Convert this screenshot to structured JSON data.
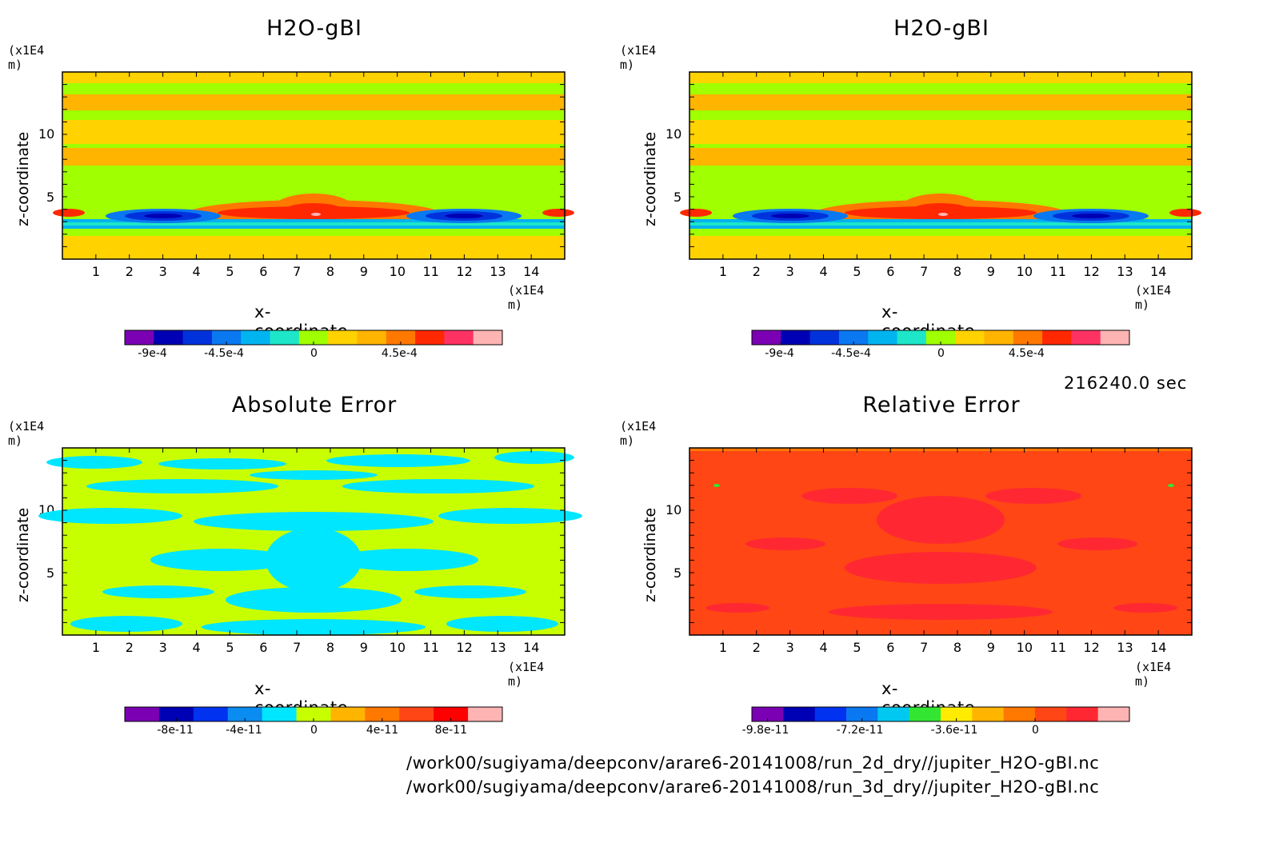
{
  "panels": [
    {
      "title": "H2O-gBI",
      "unit_y": "(x1E4 m)",
      "unit_x": "(x1E4 m)",
      "xlabel": "x-coordinate",
      "ylabel": "z-coordinate",
      "xticks": [
        "1",
        "2",
        "3",
        "4",
        "5",
        "6",
        "7",
        "8",
        "9",
        "10",
        "11",
        "12",
        "13",
        "14"
      ],
      "yticks": [
        "10",
        "5"
      ],
      "colorbar": {
        "colors": [
          "#7b00b4",
          "#0000b4",
          "#0032dc",
          "#0a78f0",
          "#00b4f0",
          "#1ee6c8",
          "#a0ff00",
          "#ffd200",
          "#ffb400",
          "#ff7800",
          "#ff2800",
          "#ff3264",
          "#ffb4b4"
        ],
        "labels": [
          "-9e-4",
          "-4.5e-4",
          "0",
          "4.5e-4"
        ]
      }
    },
    {
      "title": "H2O-gBI",
      "unit_y": "(x1E4 m)",
      "unit_x": "(x1E4 m)",
      "xlabel": "x-coordinate",
      "ylabel": "z-coordinate",
      "xticks": [
        "1",
        "2",
        "3",
        "4",
        "5",
        "6",
        "7",
        "8",
        "9",
        "10",
        "11",
        "12",
        "13",
        "14"
      ],
      "yticks": [
        "10",
        "5"
      ],
      "colorbar": {
        "colors": [
          "#7b00b4",
          "#0000b4",
          "#0032dc",
          "#0a78f0",
          "#00b4f0",
          "#1ee6c8",
          "#a0ff00",
          "#ffd200",
          "#ffb400",
          "#ff7800",
          "#ff2800",
          "#ff3264",
          "#ffb4b4"
        ],
        "labels": [
          "-9e-4",
          "-4.5e-4",
          "0",
          "4.5e-4"
        ]
      }
    },
    {
      "title": "Absolute Error",
      "unit_y": "(x1E4 m)",
      "unit_x": "(x1E4 m)",
      "xlabel": "x-coordinate",
      "ylabel": "z-coordinate",
      "xticks": [
        "1",
        "2",
        "3",
        "4",
        "5",
        "6",
        "7",
        "8",
        "9",
        "10",
        "11",
        "12",
        "13",
        "14"
      ],
      "yticks": [
        "10",
        "5"
      ],
      "colorbar": {
        "colors": [
          "#7b00b4",
          "#0000b4",
          "#0032f0",
          "#0a8cf0",
          "#00e6ff",
          "#c8ff00",
          "#ffb400",
          "#ff7800",
          "#ff4614",
          "#ff0000",
          "#ffb4b4"
        ],
        "labels": [
          "-8e-11",
          "-4e-11",
          "0",
          "4e-11",
          "8e-11"
        ]
      }
    },
    {
      "title": "Relative Error",
      "unit_y": "(x1E4 m)",
      "unit_x": "(x1E4 m)",
      "xlabel": "x-coordinate",
      "ylabel": "z-coordinate",
      "xticks": [
        "1",
        "2",
        "3",
        "4",
        "5",
        "6",
        "7",
        "8",
        "9",
        "10",
        "11",
        "12",
        "13",
        "14"
      ],
      "yticks": [
        "10",
        "5"
      ],
      "colorbar": {
        "colors": [
          "#7b00b4",
          "#0000b4",
          "#0032f0",
          "#0a78f0",
          "#00c8f0",
          "#32e632",
          "#ffeb00",
          "#ffb400",
          "#ff7800",
          "#ff4614",
          "#ff2832",
          "#ffb4b4"
        ],
        "labels": [
          "-9.8e-11",
          "-7.2e-11",
          "-3.6e-11",
          "0"
        ]
      }
    }
  ],
  "time_label": "216240.0 sec",
  "paths": [
    "/work00/sugiyama/deepconv/arare6-20141008/run_2d_dry//jupiter_H2O-gBI.nc",
    "/work00/sugiyama/deepconv/arare6-20141008/run_3d_dry//jupiter_H2O-gBI.nc"
  ],
  "chart_data": [
    {
      "type": "heatmap",
      "title": "H2O-gBI",
      "xlabel": "x-coordinate",
      "ylabel": "z-coordinate",
      "x_unit": "(x1E4 m)",
      "y_unit": "(x1E4 m)",
      "xlim": [
        0,
        15
      ],
      "ylim": [
        0,
        15
      ],
      "colorbar_labels": [
        "-9e-4",
        "-4.5e-4",
        "0",
        "4.5e-4"
      ],
      "color_levels": 13
    },
    {
      "type": "heatmap",
      "title": "H2O-gBI",
      "xlabel": "x-coordinate",
      "ylabel": "z-coordinate",
      "x_unit": "(x1E4 m)",
      "y_unit": "(x1E4 m)",
      "xlim": [
        0,
        15
      ],
      "ylim": [
        0,
        15
      ],
      "colorbar_labels": [
        "-9e-4",
        "-4.5e-4",
        "0",
        "4.5e-4"
      ],
      "color_levels": 13
    },
    {
      "type": "heatmap",
      "title": "Absolute Error",
      "xlabel": "x-coordinate",
      "ylabel": "z-coordinate",
      "x_unit": "(x1E4 m)",
      "y_unit": "(x1E4 m)",
      "xlim": [
        0,
        15
      ],
      "ylim": [
        0,
        15
      ],
      "colorbar_labels": [
        "-8e-11",
        "-4e-11",
        "0",
        "4e-11",
        "8e-11"
      ],
      "color_levels": 11
    },
    {
      "type": "heatmap",
      "title": "Relative Error",
      "xlabel": "x-coordinate",
      "ylabel": "z-coordinate",
      "x_unit": "(x1E4 m)",
      "y_unit": "(x1E4 m)",
      "xlim": [
        0,
        15
      ],
      "ylim": [
        0,
        15
      ],
      "colorbar_labels": [
        "-9.8e-11",
        "-7.2e-11",
        "-3.6e-11",
        "0"
      ],
      "color_levels": 12
    }
  ]
}
